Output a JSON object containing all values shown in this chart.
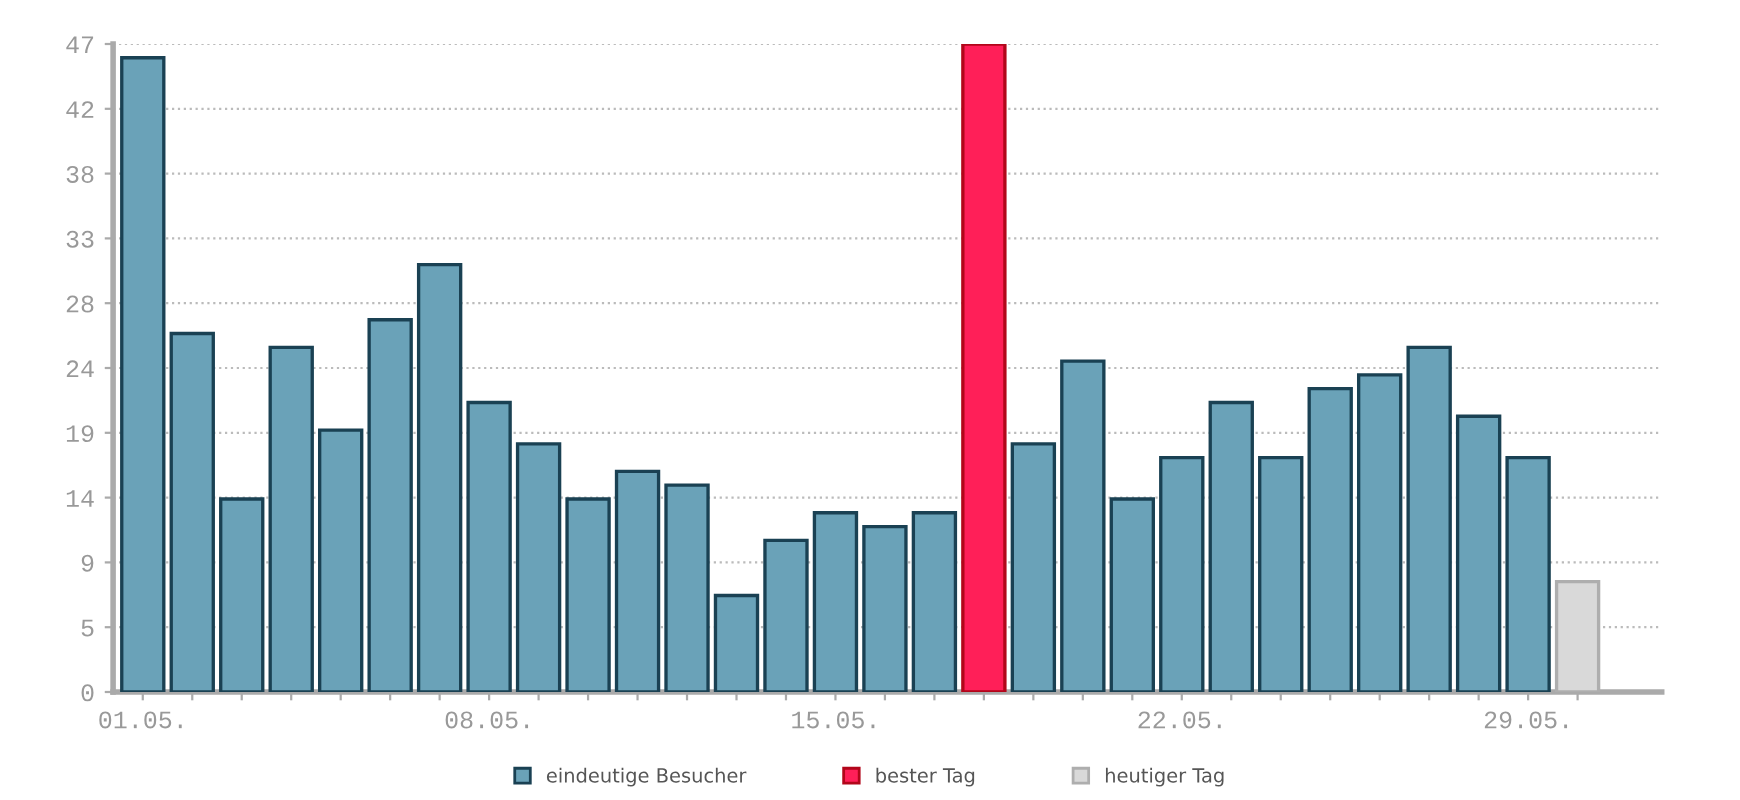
{
  "chart_data": {
    "type": "bar",
    "categories": [
      "01.05.",
      null,
      null,
      null,
      null,
      null,
      null,
      "08.05.",
      null,
      null,
      null,
      null,
      null,
      null,
      "15.05.",
      null,
      null,
      null,
      null,
      null,
      null,
      "22.05.",
      null,
      null,
      null,
      null,
      null,
      null,
      "29.05.",
      null
    ],
    "series": [
      {
        "name": "eindeutige Besucher",
        "color": "#6aa2b8",
        "values": [
          46,
          26,
          14,
          25,
          19,
          27,
          31,
          21,
          18,
          14,
          16,
          15,
          7,
          11,
          13,
          12,
          13,
          null,
          18,
          24,
          14,
          17,
          21,
          17,
          22,
          23,
          25,
          20,
          17,
          null
        ]
      },
      {
        "name": "bester Tag",
        "color": "#ff1f58",
        "values": [
          null,
          null,
          null,
          null,
          null,
          null,
          null,
          null,
          null,
          null,
          null,
          null,
          null,
          null,
          null,
          null,
          null,
          47,
          null,
          null,
          null,
          null,
          null,
          null,
          null,
          null,
          null,
          null,
          null,
          null
        ]
      },
      {
        "name": "heutiger Tag",
        "color": "#d9d9d9",
        "values": [
          null,
          null,
          null,
          null,
          null,
          null,
          null,
          null,
          null,
          null,
          null,
          null,
          null,
          null,
          null,
          null,
          null,
          null,
          null,
          null,
          null,
          null,
          null,
          null,
          null,
          null,
          null,
          null,
          null,
          8
        ]
      }
    ],
    "ylim": [
      0,
      47
    ],
    "yticks": [
      0,
      {
        "value": 4.7,
        "label": "5"
      },
      {
        "value": 9.4,
        "label": "9"
      },
      {
        "value": 14.1,
        "label": "14"
      },
      {
        "value": 18.8,
        "label": "19"
      },
      {
        "value": 23.5,
        "label": "24"
      },
      {
        "value": 28.2,
        "label": "28"
      },
      {
        "value": 32.9,
        "label": "33"
      },
      {
        "value": 37.6,
        "label": "38"
      },
      {
        "value": 42.3,
        "label": "42"
      },
      47
    ],
    "grid": "y",
    "legend": "bottom"
  }
}
